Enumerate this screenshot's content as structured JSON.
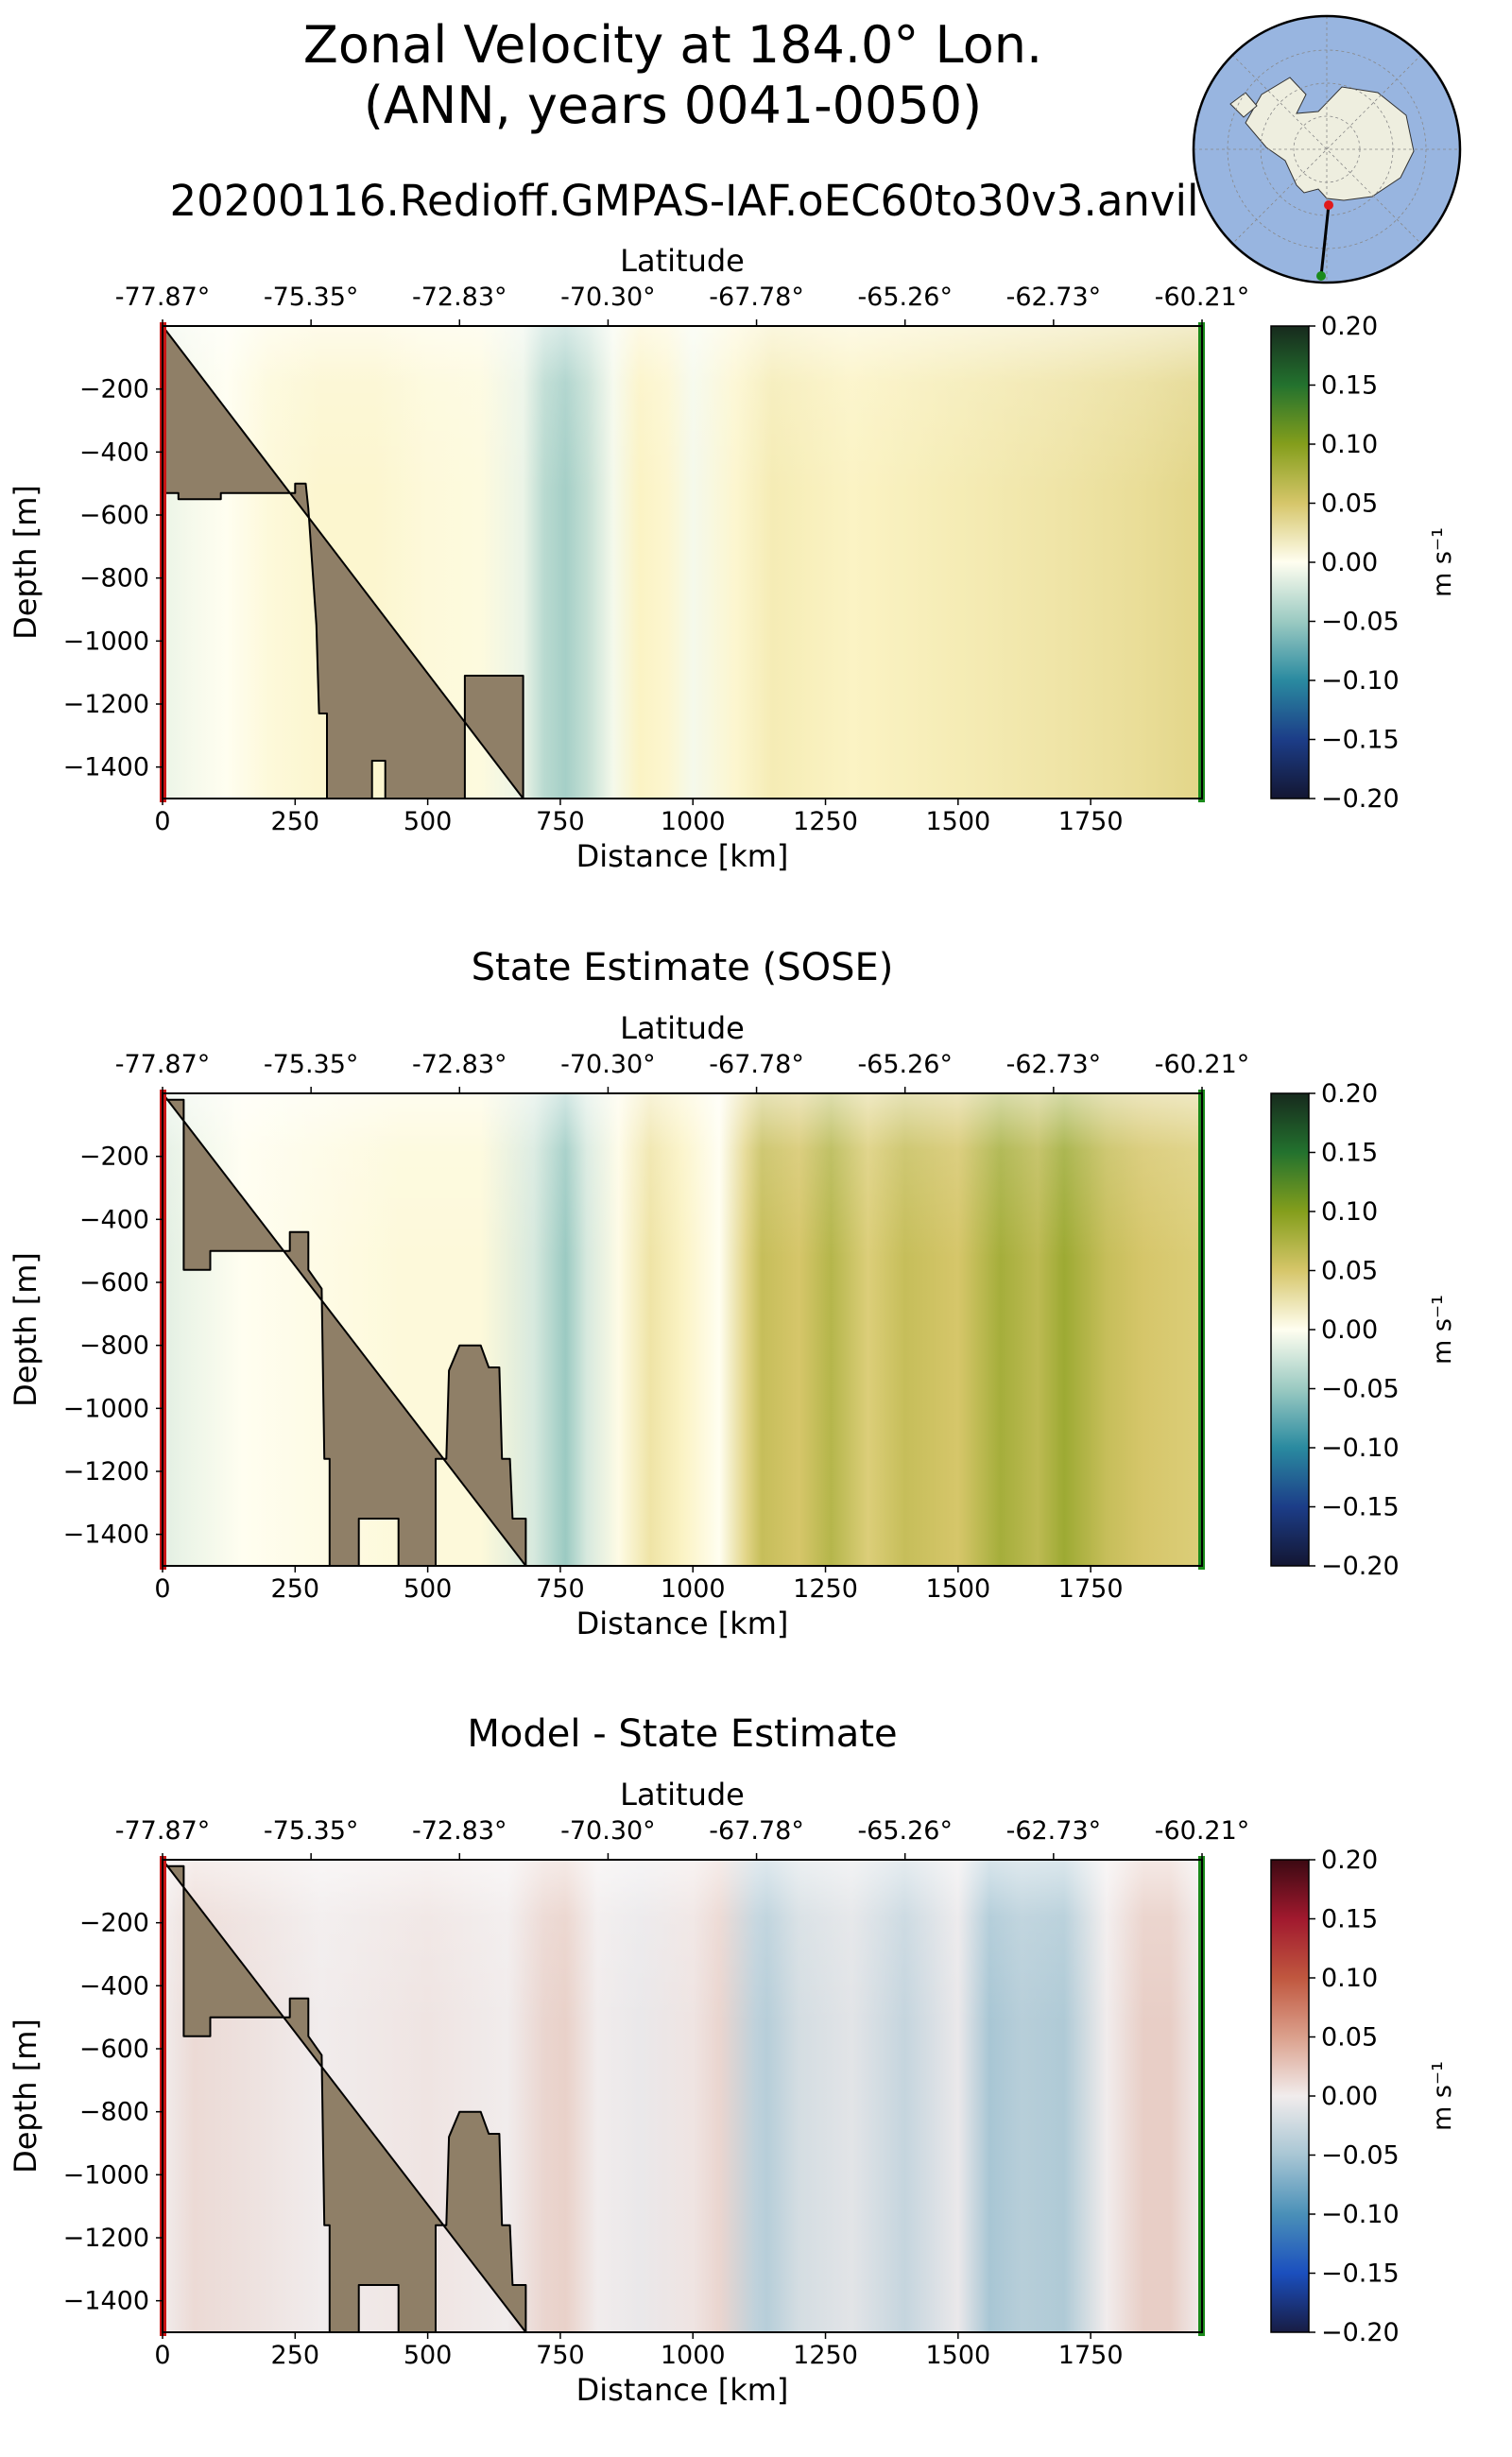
{
  "title_line1": "Zonal Velocity at 184.0° Lon.",
  "title_line2": "(ANN, years 0041-0050)",
  "run_name": "20200116.Redioff.GMPAS-IAF.oEC60to30v3.anvil",
  "chart_data": [
    {
      "type": "heatmap",
      "title": "",
      "xlabel": "Distance [km]",
      "ylabel": "Depth [m]",
      "top_xlabel": "Latitude",
      "xlim": [
        0,
        1960
      ],
      "ylim": [
        -1500,
        0
      ],
      "x_ticks": [
        0,
        250,
        500,
        750,
        1000,
        1250,
        1500,
        1750
      ],
      "y_ticks": [
        -200,
        -400,
        -600,
        -800,
        -1000,
        -1200,
        -1400
      ],
      "latitude_ticks": [
        "-77.87°",
        "-75.35°",
        "-72.83°",
        "-70.30°",
        "-67.78°",
        "-65.26°",
        "-62.73°",
        "-60.21°"
      ],
      "colorbar": {
        "label": "m s⁻¹",
        "colormap": "speed",
        "range": [
          -0.2,
          0.2
        ],
        "ticks": [
          0.2,
          0.15,
          0.1,
          0.05,
          0.0,
          -0.05,
          -0.1,
          -0.15,
          -0.2
        ]
      },
      "velocity_profile": {
        "distance_km": [
          0,
          50,
          120,
          200,
          300,
          400,
          500,
          600,
          680,
          720,
          760,
          800,
          850,
          900,
          950,
          1000,
          1080,
          1150,
          1300,
          1500,
          1700,
          1850,
          1960
        ],
        "value": [
          -0.01,
          -0.005,
          0.0,
          0.01,
          0.015,
          0.015,
          0.01,
          0.008,
          -0.01,
          -0.035,
          -0.045,
          -0.03,
          -0.005,
          0.02,
          0.015,
          -0.005,
          0.015,
          0.025,
          0.02,
          0.025,
          0.03,
          0.035,
          0.04
        ]
      },
      "bathymetry": [
        [
          0,
          0
        ],
        [
          0,
          -530
        ],
        [
          30,
          -530
        ],
        [
          30,
          -550
        ],
        [
          110,
          -550
        ],
        [
          110,
          -530
        ],
        [
          250,
          -530
        ],
        [
          250,
          -500
        ],
        [
          270,
          -500
        ],
        [
          275,
          -580
        ],
        [
          290,
          -950
        ],
        [
          295,
          -1230
        ],
        [
          310,
          -1230
        ],
        [
          310,
          -1500
        ],
        [
          395,
          -1500
        ],
        [
          395,
          -1380
        ],
        [
          420,
          -1380
        ],
        [
          420,
          -1500
        ],
        [
          570,
          -1500
        ],
        [
          570,
          -1110
        ],
        [
          680,
          -1110
        ],
        [
          680,
          -1500
        ]
      ]
    },
    {
      "type": "heatmap",
      "title": "State Estimate (SOSE)",
      "xlabel": "Distance [km]",
      "ylabel": "Depth [m]",
      "top_xlabel": "Latitude",
      "xlim": [
        0,
        1960
      ],
      "ylim": [
        -1500,
        0
      ],
      "x_ticks": [
        0,
        250,
        500,
        750,
        1000,
        1250,
        1500,
        1750
      ],
      "y_ticks": [
        -200,
        -400,
        -600,
        -800,
        -1000,
        -1200,
        -1400
      ],
      "latitude_ticks": [
        "-77.87°",
        "-75.35°",
        "-72.83°",
        "-70.30°",
        "-67.78°",
        "-65.26°",
        "-62.73°",
        "-60.21°"
      ],
      "colorbar": {
        "label": "m s⁻¹",
        "colormap": "speed",
        "range": [
          -0.2,
          0.2
        ],
        "ticks": [
          0.2,
          0.15,
          0.1,
          0.05,
          0.0,
          -0.05,
          -0.1,
          -0.15,
          -0.2
        ]
      },
      "velocity_profile": {
        "distance_km": [
          0,
          40,
          150,
          300,
          450,
          600,
          700,
          760,
          800,
          860,
          920,
          980,
          1050,
          1100,
          1130,
          1200,
          1260,
          1330,
          1400,
          1500,
          1580,
          1650,
          1700,
          1780,
          1850,
          1960
        ],
        "value": [
          -0.015,
          -0.01,
          0.0,
          0.005,
          0.01,
          0.01,
          -0.02,
          -0.05,
          -0.02,
          0.005,
          0.03,
          0.02,
          0.0,
          0.04,
          0.06,
          0.05,
          0.07,
          0.045,
          0.06,
          0.05,
          0.08,
          0.065,
          0.085,
          0.06,
          0.05,
          0.045
        ]
      },
      "bathymetry": [
        [
          0,
          0
        ],
        [
          0,
          -20
        ],
        [
          40,
          -20
        ],
        [
          40,
          -560
        ],
        [
          90,
          -560
        ],
        [
          90,
          -500
        ],
        [
          240,
          -500
        ],
        [
          240,
          -440
        ],
        [
          275,
          -440
        ],
        [
          275,
          -560
        ],
        [
          300,
          -620
        ],
        [
          305,
          -1160
        ],
        [
          315,
          -1160
        ],
        [
          315,
          -1500
        ],
        [
          370,
          -1500
        ],
        [
          370,
          -1350
        ],
        [
          445,
          -1350
        ],
        [
          445,
          -1500
        ],
        [
          515,
          -1500
        ],
        [
          515,
          -1160
        ],
        [
          535,
          -1160
        ],
        [
          540,
          -880
        ],
        [
          560,
          -800
        ],
        [
          600,
          -800
        ],
        [
          615,
          -870
        ],
        [
          635,
          -870
        ],
        [
          640,
          -1160
        ],
        [
          655,
          -1160
        ],
        [
          660,
          -1350
        ],
        [
          685,
          -1350
        ],
        [
          685,
          -1500
        ]
      ]
    },
    {
      "type": "heatmap",
      "title": "Model - State Estimate",
      "xlabel": "Distance [km]",
      "ylabel": "Depth [m]",
      "top_xlabel": "Latitude",
      "xlim": [
        0,
        1960
      ],
      "ylim": [
        -1500,
        0
      ],
      "x_ticks": [
        0,
        250,
        500,
        750,
        1000,
        1250,
        1500,
        1750
      ],
      "y_ticks": [
        -200,
        -400,
        -600,
        -800,
        -1000,
        -1200,
        -1400
      ],
      "latitude_ticks": [
        "-77.87°",
        "-75.35°",
        "-72.83°",
        "-70.30°",
        "-67.78°",
        "-65.26°",
        "-62.73°",
        "-60.21°"
      ],
      "colorbar": {
        "label": "m s⁻¹",
        "colormap": "balance",
        "range": [
          -0.2,
          0.2
        ],
        "ticks": [
          0.2,
          0.15,
          0.1,
          0.05,
          0.0,
          -0.05,
          -0.1,
          -0.15,
          -0.2
        ]
      },
      "velocity_profile": {
        "distance_km": [
          0,
          60,
          150,
          300,
          500,
          650,
          720,
          760,
          820,
          900,
          1000,
          1050,
          1120,
          1140,
          1200,
          1300,
          1400,
          1500,
          1560,
          1620,
          1700,
          1780,
          1850,
          1900,
          1960
        ],
        "value": [
          0.0,
          0.012,
          0.008,
          0.0,
          0.005,
          0.0,
          0.015,
          0.018,
          0.0,
          -0.005,
          0.005,
          0.015,
          -0.035,
          -0.04,
          -0.02,
          -0.01,
          -0.03,
          -0.005,
          -0.05,
          -0.04,
          -0.045,
          0.0,
          0.02,
          0.02,
          0.0
        ]
      },
      "bathymetry": [
        [
          0,
          0
        ],
        [
          0,
          -20
        ],
        [
          40,
          -20
        ],
        [
          40,
          -560
        ],
        [
          90,
          -560
        ],
        [
          90,
          -500
        ],
        [
          240,
          -500
        ],
        [
          240,
          -440
        ],
        [
          275,
          -440
        ],
        [
          275,
          -560
        ],
        [
          300,
          -620
        ],
        [
          305,
          -1160
        ],
        [
          315,
          -1160
        ],
        [
          315,
          -1500
        ],
        [
          370,
          -1500
        ],
        [
          370,
          -1350
        ],
        [
          445,
          -1350
        ],
        [
          445,
          -1500
        ],
        [
          515,
          -1500
        ],
        [
          515,
          -1160
        ],
        [
          535,
          -1160
        ],
        [
          540,
          -880
        ],
        [
          560,
          -800
        ],
        [
          600,
          -800
        ],
        [
          615,
          -870
        ],
        [
          635,
          -870
        ],
        [
          640,
          -1160
        ],
        [
          655,
          -1160
        ],
        [
          660,
          -1350
        ],
        [
          685,
          -1350
        ],
        [
          685,
          -1500
        ]
      ]
    }
  ],
  "inset_map": {
    "region": "Antarctica",
    "colors": {
      "ocean": "#98b5e0",
      "land": "#eeeedf",
      "start_marker": "#e0191c",
      "end_marker": "#1a8a1a"
    }
  },
  "colors": {
    "bathymetry_fill": "#8f7f67",
    "start_bar": "#c81414",
    "end_bar": "#1a8a1a"
  }
}
